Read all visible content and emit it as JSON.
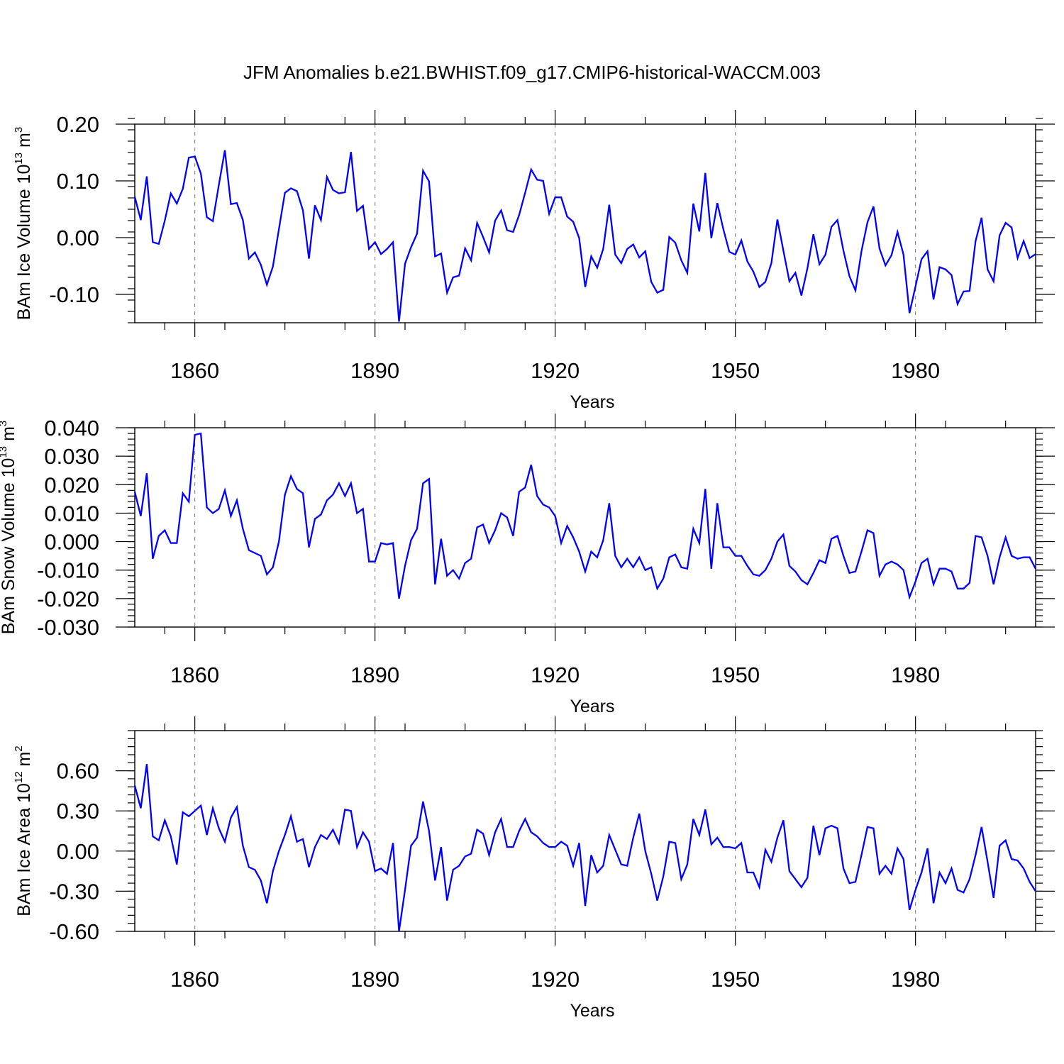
{
  "colors": {
    "series": "#0000ff",
    "axes": "#000000",
    "grid": "#777777"
  },
  "chart_data": {
    "title": "JFM Anomalies b.e21.BWHIST.f09_g17.CMIP6-historical-WACCM.003",
    "type": "line",
    "x_start_year": 1850,
    "x_step": 1,
    "xlim": [
      1850,
      2000
    ],
    "grid": "vertical dashed lines at major year ticks",
    "panels": [
      {
        "ylabel_prefix": "BAm Ice Volume 10",
        "ylabel_exp": "13",
        "ylabel_unit": " m",
        "ylabel_unit_exp": "3",
        "xlabel": "Years",
        "ylim": [
          -0.15,
          0.2
        ],
        "yticks": [
          -0.1,
          0.0,
          0.1,
          0.2
        ],
        "ytick_labels": [
          "-0.10",
          "0.00",
          "0.10",
          "0.20"
        ],
        "xticks": [
          1860,
          1890,
          1920,
          1950,
          1980
        ],
        "xtick_labels": [
          "1860",
          "1890",
          "1920",
          "1950",
          "1980"
        ],
        "values": [
          0.072,
          0.031,
          0.108,
          -0.008,
          -0.011,
          0.03,
          0.078,
          0.06,
          0.086,
          0.141,
          0.143,
          0.113,
          0.036,
          0.029,
          0.093,
          0.154,
          0.059,
          0.061,
          0.031,
          -0.037,
          -0.026,
          -0.048,
          -0.083,
          -0.051,
          0.015,
          0.079,
          0.087,
          0.082,
          0.048,
          -0.037,
          0.057,
          0.031,
          0.107,
          0.084,
          0.078,
          0.08,
          0.151,
          0.047,
          0.056,
          -0.02,
          -0.008,
          -0.029,
          -0.02,
          -0.008,
          -0.148,
          -0.046,
          -0.017,
          0.007,
          0.118,
          0.099,
          -0.033,
          -0.028,
          -0.097,
          -0.07,
          -0.067,
          -0.019,
          -0.04,
          0.026,
          0.001,
          -0.026,
          0.03,
          0.048,
          0.013,
          0.01,
          0.04,
          0.079,
          0.12,
          0.102,
          0.1,
          0.042,
          0.071,
          0.071,
          0.037,
          0.028,
          -0.001,
          -0.087,
          -0.033,
          -0.053,
          -0.02,
          0.058,
          -0.03,
          -0.045,
          -0.02,
          -0.012,
          -0.035,
          -0.024,
          -0.078,
          -0.097,
          -0.092,
          0.001,
          -0.009,
          -0.04,
          -0.062,
          0.06,
          0.011,
          0.114,
          -0.001,
          0.061,
          0.015,
          -0.025,
          -0.03,
          -0.005,
          -0.042,
          -0.06,
          -0.087,
          -0.078,
          -0.045,
          0.032,
          -0.023,
          -0.077,
          -0.062,
          -0.102,
          -0.054,
          0.006,
          -0.047,
          -0.03,
          0.019,
          0.031,
          -0.023,
          -0.068,
          -0.093,
          -0.024,
          0.027,
          0.055,
          -0.019,
          -0.049,
          -0.031,
          0.01,
          -0.03,
          -0.133,
          -0.086,
          -0.038,
          -0.024,
          -0.109,
          -0.052,
          -0.056,
          -0.066,
          -0.117,
          -0.095,
          -0.094,
          -0.006,
          0.035,
          -0.056,
          -0.077,
          0.004,
          0.026,
          0.018,
          -0.036,
          -0.006,
          -0.036,
          -0.029
        ]
      },
      {
        "ylabel_prefix": "BAm Snow Volume 10",
        "ylabel_exp": "13",
        "ylabel_unit": " m",
        "ylabel_unit_exp": "3",
        "xlabel": "Years",
        "ylim": [
          -0.03,
          0.04
        ],
        "yticks": [
          -0.03,
          -0.02,
          -0.01,
          0.0,
          0.01,
          0.02,
          0.03,
          0.04
        ],
        "ytick_labels": [
          "-0.030",
          "-0.020",
          "-0.010",
          "0.000",
          "0.010",
          "0.020",
          "0.030",
          "0.040"
        ],
        "xticks": [
          1860,
          1890,
          1920,
          1950,
          1980
        ],
        "xtick_labels": [
          "1860",
          "1890",
          "1920",
          "1950",
          "1980"
        ],
        "values": [
          0.0175,
          0.009,
          0.024,
          -0.006,
          0.002,
          0.004,
          -0.0005,
          -0.0005,
          0.017,
          0.014,
          0.0375,
          0.038,
          0.012,
          0.01,
          0.0115,
          0.018,
          0.009,
          0.0145,
          0.0045,
          -0.003,
          -0.004,
          -0.005,
          -0.0115,
          -0.009,
          0.0,
          0.0165,
          0.023,
          0.0185,
          0.017,
          -0.002,
          0.008,
          0.0095,
          0.0145,
          0.0165,
          0.0205,
          0.016,
          0.0205,
          0.01,
          0.0115,
          -0.007,
          -0.007,
          -0.0005,
          -0.001,
          -0.0005,
          -0.02,
          -0.0085,
          0.0005,
          0.0045,
          0.0205,
          0.022,
          -0.015,
          0.001,
          -0.012,
          -0.01,
          -0.013,
          -0.0075,
          -0.006,
          0.005,
          0.006,
          -0.0005,
          0.004,
          0.01,
          0.0085,
          0.002,
          0.0175,
          0.019,
          0.027,
          0.016,
          0.013,
          0.012,
          0.009,
          -0.0005,
          0.0055,
          0.0015,
          -0.0035,
          -0.0105,
          -0.0035,
          -0.0055,
          0.0005,
          0.0135,
          -0.005,
          -0.009,
          -0.006,
          -0.009,
          -0.0055,
          -0.01,
          -0.009,
          -0.0165,
          -0.013,
          -0.0055,
          -0.0045,
          -0.009,
          -0.0095,
          0.0045,
          -0.0005,
          0.0185,
          -0.0095,
          0.0135,
          -0.002,
          -0.002,
          -0.005,
          -0.005,
          -0.0085,
          -0.0115,
          -0.012,
          -0.01,
          -0.006,
          0.0,
          0.0025,
          -0.0085,
          -0.0105,
          -0.0135,
          -0.015,
          -0.011,
          -0.0065,
          -0.0075,
          0.001,
          0.002,
          -0.005,
          -0.011,
          -0.0105,
          -0.0035,
          0.004,
          0.003,
          -0.012,
          -0.008,
          -0.007,
          -0.008,
          -0.01,
          -0.0195,
          -0.014,
          -0.0075,
          -0.006,
          -0.015,
          -0.0095,
          -0.0095,
          -0.0105,
          -0.0165,
          -0.0165,
          -0.0145,
          0.002,
          0.0015,
          -0.005,
          -0.015,
          -0.0055,
          0.0015,
          -0.005,
          -0.006,
          -0.0055,
          -0.0055,
          -0.0095
        ]
      },
      {
        "ylabel_prefix": "BAm Ice Area 10",
        "ylabel_exp": "12",
        "ylabel_unit": " m",
        "ylabel_unit_exp": "2",
        "xlabel": "Years",
        "ylim": [
          -0.6,
          0.9
        ],
        "yticks": [
          -0.6,
          -0.3,
          0.0,
          0.3,
          0.6
        ],
        "ytick_labels": [
          "-0.60",
          "-0.30",
          "0.00",
          "0.30",
          "0.60"
        ],
        "xticks": [
          1860,
          1890,
          1920,
          1950,
          1980
        ],
        "xtick_labels": [
          "1860",
          "1890",
          "1920",
          "1950",
          "1980"
        ],
        "values": [
          0.49,
          0.32,
          0.65,
          0.11,
          0.08,
          0.23,
          0.11,
          -0.1,
          0.29,
          0.26,
          0.3,
          0.34,
          0.12,
          0.32,
          0.17,
          0.07,
          0.25,
          0.33,
          0.04,
          -0.12,
          -0.14,
          -0.22,
          -0.39,
          -0.15,
          0.0,
          0.12,
          0.26,
          0.07,
          0.09,
          -0.12,
          0.03,
          0.12,
          0.09,
          0.16,
          0.06,
          0.31,
          0.3,
          0.03,
          0.14,
          0.07,
          -0.15,
          -0.13,
          -0.17,
          0.06,
          -0.6,
          -0.29,
          0.04,
          0.1,
          0.37,
          0.15,
          -0.22,
          0.03,
          -0.37,
          -0.14,
          -0.11,
          -0.04,
          -0.02,
          0.16,
          0.13,
          -0.03,
          0.14,
          0.24,
          0.03,
          0.03,
          0.15,
          0.24,
          0.14,
          0.11,
          0.06,
          0.03,
          0.03,
          0.07,
          0.04,
          -0.11,
          0.06,
          -0.41,
          -0.03,
          -0.16,
          -0.11,
          0.12,
          0.01,
          -0.1,
          -0.11,
          0.1,
          0.28,
          0.0,
          -0.17,
          -0.37,
          -0.19,
          0.07,
          0.06,
          -0.21,
          -0.1,
          0.24,
          0.12,
          0.31,
          0.05,
          0.1,
          0.03,
          0.03,
          0.02,
          0.06,
          -0.16,
          -0.16,
          -0.27,
          0.01,
          -0.08,
          0.1,
          0.23,
          -0.15,
          -0.21,
          -0.27,
          -0.2,
          0.19,
          -0.03,
          0.17,
          0.19,
          0.17,
          -0.13,
          -0.24,
          -0.23,
          -0.03,
          0.18,
          0.17,
          -0.17,
          -0.11,
          -0.17,
          0.02,
          -0.06,
          -0.44,
          -0.29,
          -0.16,
          0.02,
          -0.39,
          -0.16,
          -0.24,
          -0.13,
          -0.29,
          -0.31,
          -0.21,
          -0.03,
          0.18,
          -0.08,
          -0.35,
          0.04,
          0.08,
          -0.06,
          -0.07,
          -0.13,
          -0.23,
          -0.3
        ]
      }
    ]
  }
}
